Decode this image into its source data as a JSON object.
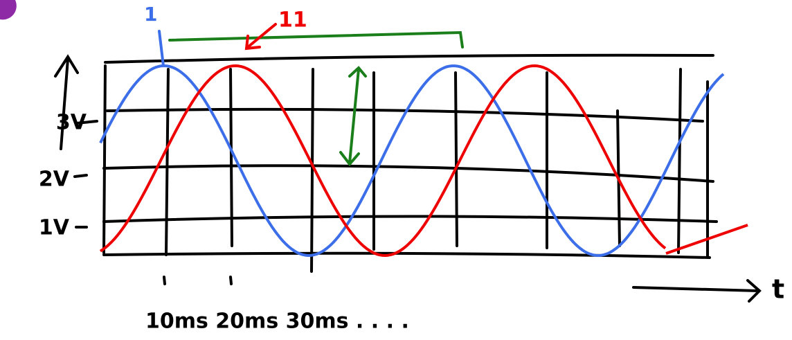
{
  "labels": {
    "y_axis": [
      "3V",
      "2V",
      "1V"
    ],
    "x_axis": "10ms 20ms 30ms . . . .",
    "t_axis": "t",
    "red_note": "11",
    "blue_note": "1"
  }
}
